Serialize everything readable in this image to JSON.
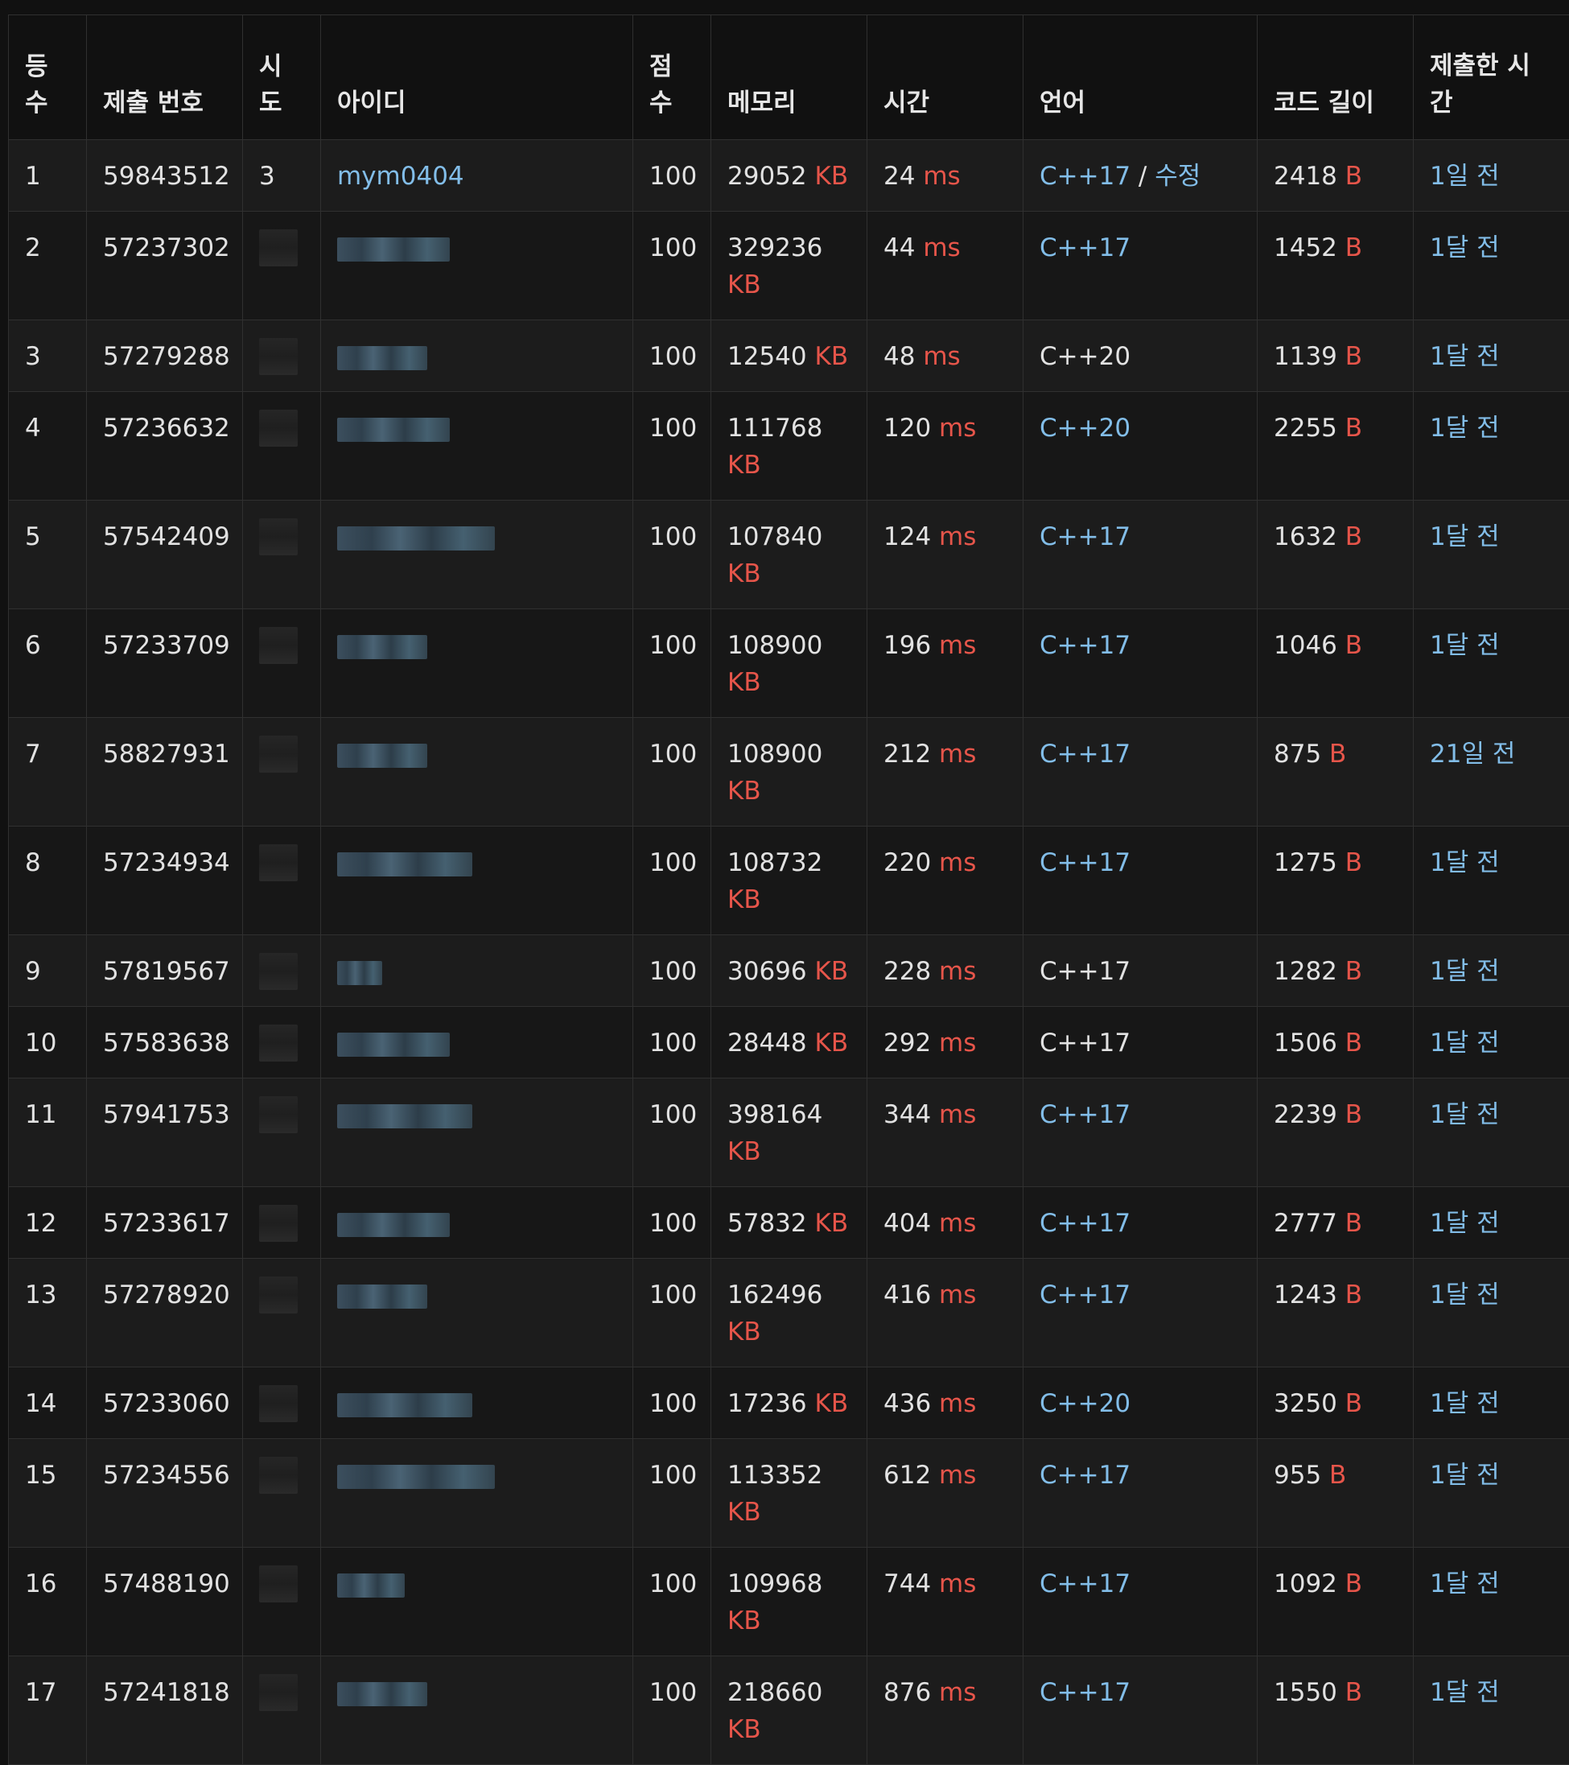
{
  "headers": {
    "rank_l1": "등",
    "rank_l2": "수",
    "submission": "제출 번호",
    "attempt_l1": "시",
    "attempt_l2": "도",
    "user": "아이디",
    "score_l1": "점",
    "score_l2": "수",
    "memory": "메모리",
    "time": "시간",
    "language": "언어",
    "code_length": "코드 길이",
    "submitted_at": "제출한 시간"
  },
  "units": {
    "memory": "KB",
    "time": "ms",
    "length": "B"
  },
  "first_row": {
    "rank": "1",
    "submission": "59843512",
    "attempt": "3",
    "user": "mym0404",
    "score": "100",
    "memory": "29052",
    "time": "24",
    "language": "C++17",
    "separator": " / ",
    "edit": "수정",
    "length": "2418",
    "submitted": "1일 전"
  },
  "rows": [
    {
      "rank": "2",
      "submission": "57237302",
      "score": "100",
      "memory": "329236",
      "time": "44",
      "language": "C++17",
      "length": "1452",
      "submitted": "1달 전"
    },
    {
      "rank": "3",
      "submission": "57279288",
      "score": "100",
      "memory": "12540",
      "time": "48",
      "language": "C++20",
      "length": "1139",
      "submitted": "1달 전"
    },
    {
      "rank": "4",
      "submission": "57236632",
      "score": "100",
      "memory": "111768",
      "time": "120",
      "language": "C++20",
      "length": "2255",
      "submitted": "1달 전"
    },
    {
      "rank": "5",
      "submission": "57542409",
      "score": "100",
      "memory": "107840",
      "time": "124",
      "language": "C++17",
      "length": "1632",
      "submitted": "1달 전"
    },
    {
      "rank": "6",
      "submission": "57233709",
      "score": "100",
      "memory": "108900",
      "time": "196",
      "language": "C++17",
      "length": "1046",
      "submitted": "1달 전"
    },
    {
      "rank": "7",
      "submission": "58827931",
      "score": "100",
      "memory": "108900",
      "time": "212",
      "language": "C++17",
      "length": "875",
      "submitted": "21일 전"
    },
    {
      "rank": "8",
      "submission": "57234934",
      "score": "100",
      "memory": "108732",
      "time": "220",
      "language": "C++17",
      "length": "1275",
      "submitted": "1달 전"
    },
    {
      "rank": "9",
      "submission": "57819567",
      "score": "100",
      "memory": "30696",
      "time": "228",
      "language": "C++17",
      "length": "1282",
      "submitted": "1달 전"
    },
    {
      "rank": "10",
      "submission": "57583638",
      "score": "100",
      "memory": "28448",
      "time": "292",
      "language": "C++17",
      "length": "1506",
      "submitted": "1달 전"
    },
    {
      "rank": "11",
      "submission": "57941753",
      "score": "100",
      "memory": "398164",
      "time": "344",
      "language": "C++17",
      "length": "2239",
      "submitted": "1달 전"
    },
    {
      "rank": "12",
      "submission": "57233617",
      "score": "100",
      "memory": "57832",
      "time": "404",
      "language": "C++17",
      "length": "2777",
      "submitted": "1달 전"
    },
    {
      "rank": "13",
      "submission": "57278920",
      "score": "100",
      "memory": "162496",
      "time": "416",
      "language": "C++17",
      "length": "1243",
      "submitted": "1달 전"
    },
    {
      "rank": "14",
      "submission": "57233060",
      "score": "100",
      "memory": "17236",
      "time": "436",
      "language": "C++20",
      "length": "3250",
      "submitted": "1달 전"
    },
    {
      "rank": "15",
      "submission": "57234556",
      "score": "100",
      "memory": "113352",
      "time": "612",
      "language": "C++17",
      "length": "955",
      "submitted": "1달 전"
    },
    {
      "rank": "16",
      "submission": "57488190",
      "score": "100",
      "memory": "109968",
      "time": "744",
      "language": "C++17",
      "length": "1092",
      "submitted": "1달 전"
    },
    {
      "rank": "17",
      "submission": "57241818",
      "score": "100",
      "memory": "218660",
      "time": "876",
      "language": "C++17",
      "length": "1550",
      "submitted": "1달 전"
    }
  ],
  "colors": {
    "link": "#82bde8",
    "unit": "#e6554a",
    "text": "#e2e2e2",
    "background": "#111111"
  }
}
